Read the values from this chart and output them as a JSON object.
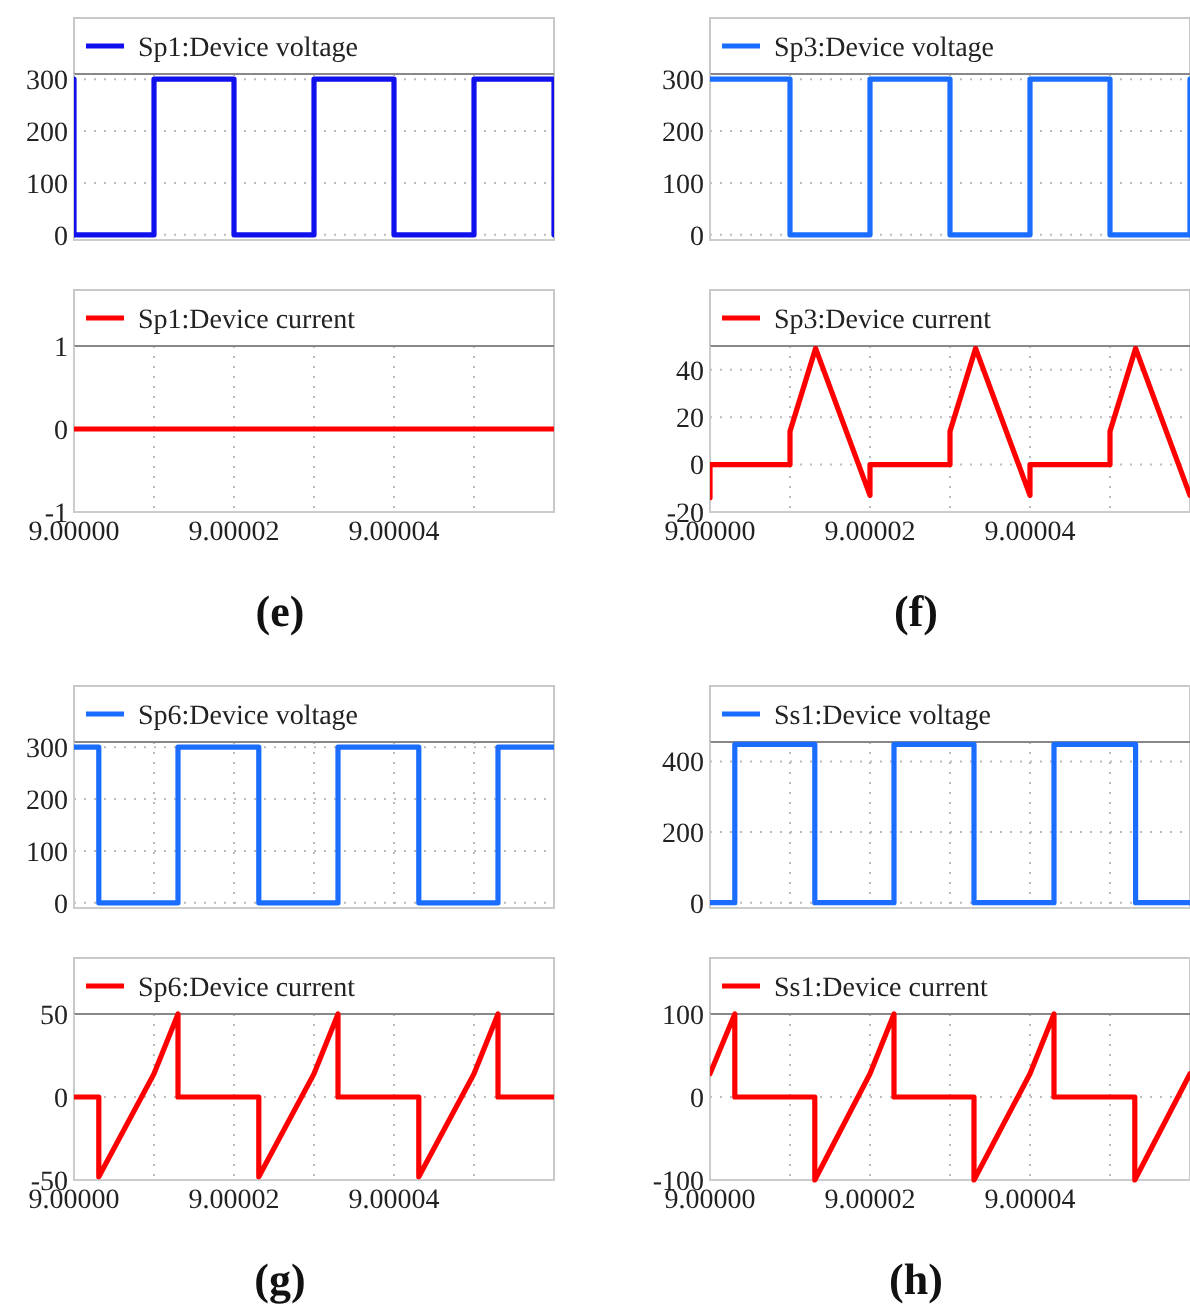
{
  "chart_data": [
    {
      "type": "line",
      "xlim": [
        9.0,
        9.00006
      ],
      "xticks": [
        {
          "value": 9.0,
          "label": null
        },
        {
          "value": 9.00001,
          "label": null
        },
        {
          "value": 9.00002,
          "label": null
        },
        {
          "value": 9.00003,
          "label": null
        },
        {
          "value": 9.00004,
          "label": null
        },
        {
          "value": 9.00005,
          "label": null
        }
      ],
      "ylim": [
        -10,
        310
      ],
      "yticks": [
        0,
        100,
        200,
        300
      ],
      "grid": true,
      "legend": "top",
      "tick_labels": "y",
      "series": [
        {
          "name": "Sp1:Device voltage",
          "color": "#1010ee",
          "x": [
            9.0,
            9.0,
            9.00001,
            9.00001,
            9.00002,
            9.00002,
            9.00003,
            9.00003,
            9.00004,
            9.00004,
            9.00005,
            9.00005,
            9.00006,
            9.00006
          ],
          "values": [
            300,
            0,
            0,
            300,
            300,
            0,
            0,
            300,
            300,
            0,
            0,
            300,
            300,
            0
          ]
        }
      ]
    },
    {
      "type": "line",
      "xlim": [
        9.0,
        9.00006
      ],
      "xticks": [
        {
          "value": 9.0,
          "label": "9.00000"
        },
        {
          "value": 9.00001,
          "label": null
        },
        {
          "value": 9.00002,
          "label": "9.00002"
        },
        {
          "value": 9.00003,
          "label": null
        },
        {
          "value": 9.00004,
          "label": "9.00004"
        },
        {
          "value": 9.00005,
          "label": null
        }
      ],
      "ylim": [
        -1,
        1
      ],
      "yticks": [
        -1,
        0,
        1
      ],
      "grid": true,
      "legend": "top",
      "annotations": [
        "(e)"
      ],
      "series": [
        {
          "name": "Sp1:Device current",
          "color": "#ff0000",
          "x": [
            9.0,
            9.00006
          ],
          "values": [
            0,
            0
          ]
        }
      ]
    },
    {
      "type": "line",
      "xlim": [
        9.0,
        9.00006
      ],
      "xticks": [
        {
          "value": 9.0,
          "label": null
        },
        {
          "value": 9.00001,
          "label": null
        },
        {
          "value": 9.00002,
          "label": null
        },
        {
          "value": 9.00003,
          "label": null
        },
        {
          "value": 9.00004,
          "label": null
        },
        {
          "value": 9.00005,
          "label": null
        }
      ],
      "ylim": [
        -10,
        310
      ],
      "yticks": [
        0,
        100,
        200,
        300
      ],
      "grid": true,
      "legend": "top",
      "tick_labels": "y",
      "series": [
        {
          "name": "Sp3:Device voltage",
          "color": "#1a6dff",
          "x": [
            9.0,
            9.00001,
            9.00001,
            9.00002,
            9.00002,
            9.00003,
            9.00003,
            9.00004,
            9.00004,
            9.00005,
            9.00005,
            9.00006,
            9.00006
          ],
          "values": [
            300,
            300,
            0,
            0,
            300,
            300,
            0,
            0,
            300,
            300,
            0,
            0,
            300
          ]
        }
      ]
    },
    {
      "type": "line",
      "xlim": [
        9.0,
        9.00006
      ],
      "xticks": [
        {
          "value": 9.0,
          "label": "9.00000"
        },
        {
          "value": 9.00001,
          "label": null
        },
        {
          "value": 9.00002,
          "label": "9.00002"
        },
        {
          "value": 9.00003,
          "label": null
        },
        {
          "value": 9.00004,
          "label": "9.00004"
        },
        {
          "value": 9.00005,
          "label": null
        }
      ],
      "ylim": [
        -20,
        50
      ],
      "yticks": [
        -20,
        0,
        20,
        40
      ],
      "grid": true,
      "legend": "top",
      "annotations": [
        "(f)"
      ],
      "series": [
        {
          "name": "Sp3:Device current",
          "color": "#ff0000",
          "x": [
            9.0,
            9.0,
            9.00001,
            9.00001,
            9.0000132,
            9.00002,
            9.00002,
            9.00003,
            9.00003,
            9.0000332,
            9.00004,
            9.00004,
            9.00005,
            9.00005,
            9.0000532,
            9.00006
          ],
          "values": [
            -14,
            0,
            0,
            14,
            49,
            -13,
            0,
            0,
            14,
            49,
            -13,
            0,
            0,
            14,
            49,
            -13
          ]
        }
      ]
    },
    {
      "type": "line",
      "xlim": [
        9.0,
        9.00006
      ],
      "xticks": [
        {
          "value": 9.0,
          "label": null
        },
        {
          "value": 9.00001,
          "label": null
        },
        {
          "value": 9.00002,
          "label": null
        },
        {
          "value": 9.00003,
          "label": null
        },
        {
          "value": 9.00004,
          "label": null
        },
        {
          "value": 9.00005,
          "label": null
        }
      ],
      "ylim": [
        -10,
        310
      ],
      "yticks": [
        0,
        100,
        200,
        300
      ],
      "grid": true,
      "legend": "top",
      "tick_labels": "y",
      "series": [
        {
          "name": "Sp6:Device voltage",
          "color": "#1a6dff",
          "x": [
            9.0,
            9.0000031,
            9.0000031,
            9.000013,
            9.000013,
            9.0000231,
            9.0000231,
            9.000033,
            9.000033,
            9.0000431,
            9.0000431,
            9.000053,
            9.000053,
            9.00006
          ],
          "values": [
            300,
            300,
            0,
            0,
            300,
            300,
            0,
            0,
            300,
            300,
            0,
            0,
            300,
            300
          ]
        }
      ]
    },
    {
      "type": "line",
      "xlim": [
        9.0,
        9.00006
      ],
      "xticks": [
        {
          "value": 9.0,
          "label": "9.00000"
        },
        {
          "value": 9.00001,
          "label": null
        },
        {
          "value": 9.00002,
          "label": "9.00002"
        },
        {
          "value": 9.00003,
          "label": null
        },
        {
          "value": 9.00004,
          "label": "9.00004"
        },
        {
          "value": 9.00005,
          "label": null
        }
      ],
      "ylim": [
        -50,
        50
      ],
      "yticks": [
        -50,
        0,
        50
      ],
      "grid": true,
      "legend": "top",
      "annotations": [
        "(g)"
      ],
      "series": [
        {
          "name": "Sp6:Device current",
          "color": "#ff0000",
          "x": [
            9.0,
            9.0000031,
            9.0000031,
            9.00001,
            9.000013,
            9.000013,
            9.0000231,
            9.0000231,
            9.00003,
            9.000033,
            9.000033,
            9.0000431,
            9.0000431,
            9.00005,
            9.000053,
            9.000053,
            9.00006
          ],
          "values": [
            0,
            0,
            -48,
            14,
            50,
            0,
            0,
            -48,
            14,
            50,
            0,
            0,
            -48,
            14,
            50,
            0,
            0
          ]
        }
      ]
    },
    {
      "type": "line",
      "xlim": [
        9.0,
        9.00006
      ],
      "xticks": [
        {
          "value": 9.0,
          "label": null
        },
        {
          "value": 9.00001,
          "label": null
        },
        {
          "value": 9.00002,
          "label": null
        },
        {
          "value": 9.00003,
          "label": null
        },
        {
          "value": 9.00004,
          "label": null
        },
        {
          "value": 9.00005,
          "label": null
        }
      ],
      "ylim": [
        -15,
        455
      ],
      "yticks": [
        0,
        200,
        400
      ],
      "grid": true,
      "legend": "top",
      "tick_labels": "y",
      "series": [
        {
          "name": "Ss1:Device voltage",
          "color": "#1a6dff",
          "x": [
            9.0,
            9.0000031,
            9.0000031,
            9.0000131,
            9.0000131,
            9.000023,
            9.000023,
            9.000033,
            9.000033,
            9.000043,
            9.000043,
            9.0000532,
            9.0000532,
            9.00006
          ],
          "values": [
            0,
            0,
            448,
            448,
            0,
            0,
            448,
            448,
            0,
            0,
            448,
            448,
            0,
            0
          ]
        }
      ]
    },
    {
      "type": "line",
      "xlim": [
        9.0,
        9.00006
      ],
      "xticks": [
        {
          "value": 9.0,
          "label": "9.00000"
        },
        {
          "value": 9.00001,
          "label": null
        },
        {
          "value": 9.00002,
          "label": "9.00002"
        },
        {
          "value": 9.00003,
          "label": null
        },
        {
          "value": 9.00004,
          "label": "9.00004"
        },
        {
          "value": 9.00005,
          "label": null
        }
      ],
      "ylim": [
        -100,
        100
      ],
      "yticks": [
        -100,
        0,
        100
      ],
      "grid": true,
      "legend": "top",
      "annotations": [
        "(h)"
      ],
      "series": [
        {
          "name": "Ss1:Device current",
          "color": "#ff0000",
          "x": [
            9.0,
            9.0000031,
            9.0000031,
            9.0000131,
            9.0000131,
            9.00002,
            9.000023,
            9.000023,
            9.000033,
            9.000033,
            9.00004,
            9.000043,
            9.000043,
            9.0000531,
            9.0000531,
            9.00006
          ],
          "values": [
            28,
            100,
            0,
            0,
            -100,
            28,
            100,
            0,
            0,
            -100,
            28,
            100,
            0,
            0,
            -100,
            28
          ]
        }
      ]
    }
  ]
}
